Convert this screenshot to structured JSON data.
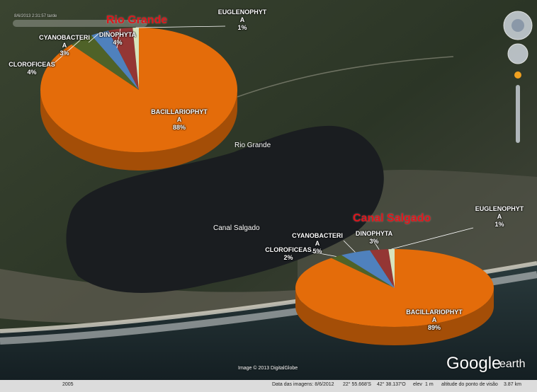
{
  "chart_data": [
    {
      "type": "pie",
      "title": "Rio Grande",
      "categories": [
        "BACILLARIOPHYTA",
        "CLOROFICEAS",
        "CYANOBACTERIA",
        "DINOPHYTA",
        "EUGLENOPHYTA"
      ],
      "values": [
        88,
        4,
        3,
        4,
        1
      ],
      "value_labels": [
        "88%",
        "4%",
        "3%",
        "4%",
        "1%"
      ],
      "colors": [
        "#e46c0a",
        "#4f6228",
        "#4f81bd",
        "#943634",
        "#d7e4bd"
      ]
    },
    {
      "type": "pie",
      "title": "Canal Salgado",
      "categories": [
        "BACILLARIOPHYTA",
        "CLOROFICEAS",
        "CYANOBACTERIA",
        "DINOPHYTA",
        "EUGLENOPHYTA"
      ],
      "values": [
        89,
        2,
        5,
        3,
        1
      ],
      "value_labels": [
        "89%",
        "2%",
        "5%",
        "3%",
        "1%"
      ],
      "colors": [
        "#e46c0a",
        "#4f6228",
        "#4f81bd",
        "#943634",
        "#d7e4bd"
      ]
    }
  ],
  "map": {
    "places": [
      "Rio Grande",
      "Canal Salgado"
    ],
    "timestamp": "8/6/2013  2:31:57 tarde",
    "attribution": "Image © 2013 DigitalGlobe",
    "logo": [
      "Google",
      "earth"
    ],
    "year": "2005",
    "status": [
      "Data das imagens: 8/6/2012",
      "22° 55.668'S",
      "42° 38.137'O",
      "elev",
      "1 m",
      "altitude do ponto de visão",
      "3.87 km"
    ]
  }
}
